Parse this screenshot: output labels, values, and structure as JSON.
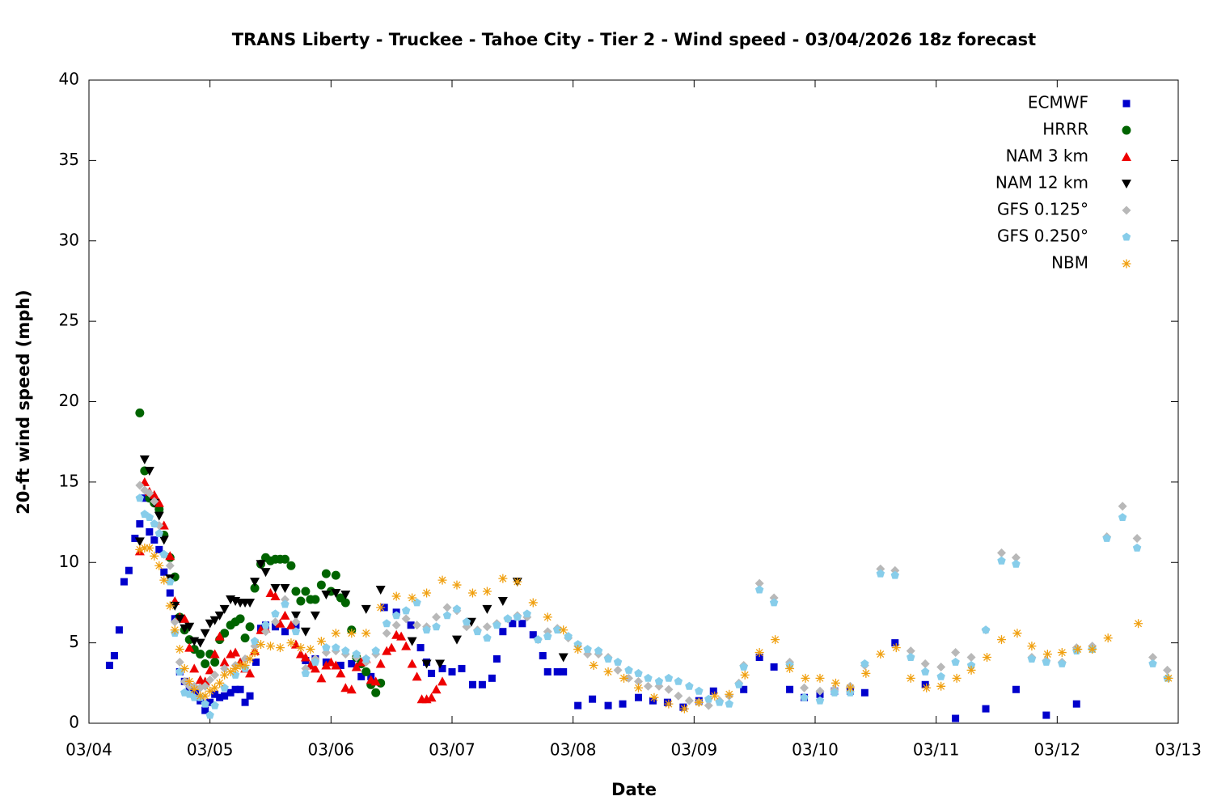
{
  "chart_data": {
    "type": "scatter",
    "title": "TRANS Liberty - Truckee - Tahoe City - Tier 2 - Wind speed - 03/04/2026 18z forecast",
    "x_label": "Date",
    "y_label": "20-ft wind speed (mph)",
    "xlim": [
      0,
      9
    ],
    "xticks": [
      {
        "value": 0,
        "label": "03/04"
      },
      {
        "value": 1,
        "label": "03/05"
      },
      {
        "value": 2,
        "label": "03/06"
      },
      {
        "value": 3,
        "label": "03/07"
      },
      {
        "value": 4,
        "label": "03/08"
      },
      {
        "value": 5,
        "label": "03/09"
      },
      {
        "value": 6,
        "label": "03/10"
      },
      {
        "value": 7,
        "label": "03/11"
      },
      {
        "value": 8,
        "label": "03/12"
      },
      {
        "value": 9,
        "label": "03/13"
      }
    ],
    "ylim": [
      0,
      40
    ],
    "yticks": [
      0,
      5,
      10,
      15,
      20,
      25,
      30,
      35,
      40
    ],
    "grid": false,
    "legend": "upper right",
    "series": [
      {
        "name": "ECMWF",
        "color": "#0000cc",
        "marker": "square",
        "x": [
          0.17,
          0.21,
          0.25,
          0.29,
          0.33,
          0.38,
          0.42,
          0.46,
          0.5,
          0.54,
          0.58,
          0.62,
          0.67,
          0.71,
          0.75,
          0.79,
          0.83,
          0.88,
          0.92,
          0.96,
          1.0,
          1.04,
          1.08,
          1.12,
          1.17,
          1.21,
          1.25,
          1.29,
          1.33,
          1.38,
          1.42,
          1.46,
          1.54,
          1.62,
          1.71,
          1.79,
          1.87,
          1.96,
          2.08,
          2.17,
          2.25,
          2.33,
          2.44,
          2.54,
          2.66,
          2.74,
          2.79,
          2.83,
          2.92,
          3.0,
          3.08,
          3.17,
          3.25,
          3.33,
          3.37,
          3.42,
          3.5,
          3.58,
          3.67,
          3.75,
          3.79,
          3.87,
          3.92,
          4.04,
          4.16,
          4.29,
          4.41,
          4.54,
          4.66,
          4.78,
          4.91,
          5.04,
          5.16,
          5.41,
          5.54,
          5.66,
          5.79,
          5.91,
          6.04,
          6.16,
          6.29,
          6.41,
          6.66,
          6.91,
          7.16,
          7.41,
          7.66,
          7.91,
          8.16
        ],
        "values": [
          3.6,
          4.2,
          5.8,
          8.8,
          9.5,
          11.5,
          12.4,
          14.0,
          11.9,
          11.4,
          10.8,
          9.4,
          8.1,
          6.5,
          3.2,
          2.6,
          2.1,
          1.9,
          1.4,
          0.8,
          1.3,
          1.8,
          1.6,
          1.7,
          1.9,
          2.1,
          2.1,
          1.3,
          1.7,
          3.8,
          5.9,
          6.1,
          6.0,
          5.7,
          6.1,
          3.9,
          4.0,
          3.8,
          3.6,
          3.7,
          2.9,
          2.9,
          7.2,
          6.9,
          6.1,
          4.7,
          3.8,
          3.1,
          3.4,
          3.2,
          3.4,
          2.4,
          2.4,
          2.8,
          4.0,
          5.7,
          6.2,
          6.2,
          5.5,
          4.2,
          3.2,
          3.2,
          3.2,
          1.1,
          1.5,
          1.1,
          1.2,
          1.6,
          1.4,
          1.3,
          1.0,
          1.4,
          2.0,
          2.1,
          4.1,
          3.5,
          2.1,
          1.6,
          1.8,
          2.0,
          2.0,
          1.9,
          5.0,
          2.4,
          0.3,
          0.9,
          2.1,
          0.5,
          1.2
        ]
      },
      {
        "name": "HRRR",
        "color": "#006400",
        "marker": "circle",
        "x": [
          0.42,
          0.46,
          0.5,
          0.54,
          0.58,
          0.62,
          0.67,
          0.71,
          0.75,
          0.79,
          0.83,
          0.87,
          0.92,
          0.96,
          1.0,
          1.04,
          1.08,
          1.12,
          1.17,
          1.21,
          1.25,
          1.29,
          1.33,
          1.37,
          1.42,
          1.46,
          1.5,
          1.54,
          1.58,
          1.62,
          1.67,
          1.71,
          1.75,
          1.79,
          1.83,
          1.87,
          1.92,
          1.96,
          2.0,
          2.04,
          2.08,
          2.12,
          2.17,
          2.21,
          2.25,
          2.29,
          2.33,
          2.37,
          2.41
        ],
        "values": [
          19.3,
          15.7,
          14.0,
          13.7,
          13.3,
          11.7,
          10.3,
          9.1,
          6.6,
          5.8,
          5.2,
          4.6,
          4.3,
          3.7,
          4.3,
          3.8,
          5.2,
          5.6,
          6.1,
          6.3,
          6.5,
          5.3,
          6.0,
          8.4,
          9.9,
          10.3,
          10.1,
          10.2,
          10.2,
          10.2,
          9.8,
          8.2,
          7.6,
          8.2,
          7.7,
          7.7,
          8.6,
          9.3,
          8.2,
          9.2,
          7.8,
          7.5,
          5.8,
          4.1,
          3.7,
          3.2,
          2.4,
          1.9,
          2.5
        ]
      },
      {
        "name": "NAM 3 km",
        "color": "#ee0000",
        "marker": "triangle-up",
        "x": [
          0.42,
          0.46,
          0.5,
          0.54,
          0.58,
          0.62,
          0.67,
          0.71,
          0.75,
          0.79,
          0.83,
          0.87,
          0.92,
          0.96,
          1.0,
          1.04,
          1.08,
          1.12,
          1.17,
          1.21,
          1.25,
          1.29,
          1.33,
          1.37,
          1.42,
          1.46,
          1.5,
          1.54,
          1.58,
          1.62,
          1.67,
          1.71,
          1.75,
          1.79,
          1.83,
          1.87,
          1.92,
          1.96,
          2.0,
          2.04,
          2.08,
          2.12,
          2.17,
          2.21,
          2.25,
          2.29,
          2.33,
          2.37,
          2.41,
          2.46,
          2.5,
          2.54,
          2.58,
          2.62,
          2.67,
          2.71,
          2.75,
          2.79,
          2.83,
          2.87,
          2.92
        ],
        "values": [
          10.7,
          15.0,
          14.4,
          14.2,
          13.7,
          12.3,
          10.4,
          7.6,
          6.6,
          6.5,
          4.7,
          3.4,
          2.7,
          2.6,
          3.3,
          4.3,
          5.4,
          3.8,
          4.3,
          4.4,
          3.8,
          3.4,
          3.1,
          4.5,
          5.8,
          5.9,
          8.1,
          7.9,
          6.2,
          6.7,
          6.1,
          4.9,
          4.3,
          4.1,
          3.6,
          3.4,
          2.8,
          3.6,
          3.8,
          3.6,
          3.1,
          2.2,
          2.1,
          3.5,
          3.8,
          4.0,
          2.7,
          2.6,
          3.7,
          4.5,
          4.7,
          5.5,
          5.4,
          4.8,
          3.7,
          2.9,
          1.5,
          1.5,
          1.6,
          2.1,
          2.6
        ]
      },
      {
        "name": "NAM 12 km",
        "color": "#000000",
        "marker": "triangle-down",
        "x": [
          0.42,
          0.46,
          0.5,
          0.54,
          0.58,
          0.62,
          0.67,
          0.71,
          0.75,
          0.79,
          0.83,
          0.87,
          0.92,
          0.96,
          1.0,
          1.04,
          1.08,
          1.12,
          1.17,
          1.21,
          1.25,
          1.29,
          1.33,
          1.37,
          1.42,
          1.46,
          1.54,
          1.62,
          1.71,
          1.79,
          1.87,
          1.96,
          2.04,
          2.12,
          2.29,
          2.41,
          2.67,
          2.79,
          2.9,
          3.04,
          3.16,
          3.29,
          3.42,
          3.54,
          3.92
        ],
        "values": [
          11.3,
          16.4,
          15.7,
          13.7,
          12.9,
          11.4,
          9.0,
          7.3,
          6.5,
          5.9,
          6.0,
          5.1,
          5.0,
          5.6,
          6.2,
          6.4,
          6.7,
          7.1,
          7.7,
          7.6,
          7.5,
          7.5,
          7.5,
          8.8,
          9.9,
          9.4,
          8.4,
          8.4,
          6.7,
          5.7,
          6.7,
          8.0,
          8.1,
          8.0,
          7.1,
          8.3,
          5.1,
          3.7,
          3.7,
          5.2,
          6.3,
          7.1,
          7.6,
          8.8,
          4.1
        ]
      },
      {
        "name": "GFS 0.125°",
        "color": "#b8b8b8",
        "marker": "diamond",
        "x": [
          0.42,
          0.46,
          0.5,
          0.54,
          0.58,
          0.62,
          0.67,
          0.71,
          0.75,
          0.79,
          0.83,
          0.87,
          0.92,
          0.96,
          1.0,
          1.04,
          1.12,
          1.21,
          1.29,
          1.37,
          1.46,
          1.54,
          1.62,
          1.71,
          1.79,
          1.87,
          1.96,
          2.04,
          2.12,
          2.21,
          2.29,
          2.37,
          2.46,
          2.54,
          2.62,
          2.71,
          2.79,
          2.87,
          2.96,
          3.04,
          3.12,
          3.21,
          3.29,
          3.37,
          3.46,
          3.54,
          3.62,
          3.71,
          3.79,
          3.87,
          3.96,
          4.04,
          4.12,
          4.21,
          4.29,
          4.37,
          4.46,
          4.54,
          4.62,
          4.71,
          4.79,
          4.87,
          4.96,
          5.04,
          5.12,
          5.21,
          5.29,
          5.37,
          5.41,
          5.54,
          5.66,
          5.79,
          5.91,
          6.04,
          6.16,
          6.29,
          6.41,
          6.54,
          6.66,
          6.79,
          6.91,
          7.04,
          7.16,
          7.29,
          7.41,
          7.54,
          7.66,
          7.79,
          7.91,
          8.04,
          8.16,
          8.29,
          8.41,
          8.54,
          8.66,
          8.79,
          8.91
        ],
        "values": [
          14.8,
          14.5,
          14.3,
          13.8,
          12.3,
          10.5,
          9.8,
          6.3,
          3.8,
          2.6,
          2.3,
          2.3,
          2.2,
          2.3,
          2.7,
          3.0,
          3.4,
          3.6,
          4.0,
          4.8,
          5.7,
          6.3,
          7.7,
          6.3,
          3.4,
          4.0,
          4.4,
          4.5,
          4.3,
          4.1,
          3.8,
          4.3,
          5.6,
          6.1,
          6.5,
          6.1,
          6.0,
          6.6,
          7.2,
          7.0,
          6.0,
          5.8,
          6.0,
          6.2,
          6.5,
          6.7,
          6.6,
          5.2,
          5.7,
          5.9,
          5.3,
          4.8,
          4.3,
          4.3,
          4.1,
          3.3,
          2.8,
          2.6,
          2.3,
          2.3,
          2.1,
          1.7,
          1.4,
          1.3,
          1.1,
          1.4,
          1.7,
          2.5,
          3.6,
          8.7,
          7.8,
          3.8,
          2.2,
          2.0,
          2.1,
          2.3,
          3.6,
          9.6,
          9.5,
          4.5,
          3.7,
          3.5,
          4.4,
          4.1,
          5.8,
          10.6,
          10.3,
          4.1,
          3.9,
          3.8,
          4.7,
          4.8,
          11.6,
          13.5,
          11.5,
          4.1,
          3.3
        ]
      },
      {
        "name": "GFS 0.250°",
        "color": "#87cdea",
        "marker": "pentagon",
        "x": [
          0.42,
          0.46,
          0.5,
          0.54,
          0.58,
          0.62,
          0.67,
          0.71,
          0.75,
          0.79,
          0.83,
          0.87,
          0.92,
          0.96,
          1.0,
          1.04,
          1.12,
          1.21,
          1.29,
          1.37,
          1.46,
          1.54,
          1.62,
          1.71,
          1.79,
          1.87,
          1.96,
          2.04,
          2.12,
          2.21,
          2.29,
          2.37,
          2.46,
          2.54,
          2.62,
          2.71,
          2.79,
          2.87,
          2.96,
          3.04,
          3.12,
          3.21,
          3.29,
          3.37,
          3.46,
          3.54,
          3.62,
          3.71,
          3.79,
          3.87,
          3.96,
          4.04,
          4.12,
          4.21,
          4.29,
          4.37,
          4.46,
          4.54,
          4.62,
          4.71,
          4.79,
          4.87,
          4.96,
          5.04,
          5.12,
          5.21,
          5.29,
          5.37,
          5.41,
          5.54,
          5.66,
          5.79,
          5.91,
          6.04,
          6.16,
          6.29,
          6.41,
          6.54,
          6.66,
          6.79,
          6.91,
          7.04,
          7.16,
          7.29,
          7.41,
          7.54,
          7.66,
          7.79,
          7.91,
          8.04,
          8.16,
          8.29,
          8.41,
          8.54,
          8.66,
          8.79,
          8.91
        ],
        "values": [
          14.0,
          13.0,
          12.8,
          12.4,
          11.8,
          10.5,
          8.8,
          5.6,
          3.2,
          1.9,
          1.8,
          1.6,
          1.6,
          1.2,
          0.5,
          1.1,
          2.2,
          3.0,
          3.4,
          5.1,
          6.1,
          6.8,
          7.4,
          5.7,
          3.1,
          3.8,
          4.7,
          4.7,
          4.5,
          4.3,
          4.0,
          4.5,
          6.2,
          6.7,
          7.0,
          7.5,
          5.8,
          6.0,
          6.7,
          7.1,
          6.3,
          5.7,
          5.3,
          6.1,
          6.5,
          6.6,
          6.8,
          5.2,
          5.4,
          5.8,
          5.4,
          4.9,
          4.6,
          4.5,
          4.0,
          3.8,
          3.3,
          3.1,
          2.8,
          2.6,
          2.8,
          2.6,
          2.3,
          2.0,
          1.5,
          1.3,
          1.2,
          2.4,
          3.5,
          8.3,
          7.5,
          3.6,
          1.6,
          1.4,
          1.9,
          1.9,
          3.7,
          9.3,
          9.2,
          4.1,
          3.2,
          2.9,
          3.8,
          3.6,
          5.8,
          10.1,
          9.9,
          4.0,
          3.8,
          3.7,
          4.5,
          4.6,
          11.5,
          12.8,
          10.9,
          3.7,
          2.8
        ]
      },
      {
        "name": "NBM",
        "color": "#f0a010",
        "marker": "asterisk",
        "x": [
          0.42,
          0.46,
          0.5,
          0.54,
          0.58,
          0.62,
          0.67,
          0.71,
          0.75,
          0.79,
          0.83,
          0.87,
          0.92,
          0.96,
          1.0,
          1.04,
          1.08,
          1.12,
          1.17,
          1.21,
          1.25,
          1.29,
          1.33,
          1.37,
          1.42,
          1.5,
          1.58,
          1.67,
          1.75,
          1.83,
          1.92,
          2.04,
          2.17,
          2.29,
          2.41,
          2.54,
          2.67,
          2.79,
          2.92,
          3.04,
          3.17,
          3.29,
          3.42,
          3.54,
          3.67,
          3.79,
          3.92,
          4.04,
          4.17,
          4.29,
          4.42,
          4.54,
          4.67,
          4.79,
          4.92,
          5.04,
          5.17,
          5.29,
          5.42,
          5.54,
          5.67,
          5.79,
          5.92,
          6.04,
          6.17,
          6.29,
          6.42,
          6.54,
          6.67,
          6.79,
          6.92,
          7.04,
          7.17,
          7.29,
          7.42,
          7.54,
          7.67,
          7.79,
          7.92,
          8.04,
          8.17,
          8.29,
          8.42,
          8.67,
          8.92
        ],
        "values": [
          10.8,
          10.9,
          10.9,
          10.4,
          9.8,
          8.9,
          7.3,
          5.8,
          4.6,
          3.4,
          2.6,
          2.1,
          1.7,
          1.7,
          2.0,
          2.2,
          2.5,
          3.0,
          3.2,
          3.4,
          3.6,
          3.6,
          4.0,
          4.4,
          4.9,
          4.8,
          4.7,
          5.0,
          4.7,
          4.6,
          5.1,
          5.6,
          5.6,
          5.6,
          7.2,
          7.9,
          7.8,
          8.1,
          8.9,
          8.6,
          8.1,
          8.2,
          9.0,
          8.8,
          7.5,
          6.6,
          5.8,
          4.6,
          3.6,
          3.2,
          2.8,
          2.2,
          1.6,
          1.2,
          0.9,
          1.3,
          1.7,
          1.8,
          3.0,
          4.4,
          5.2,
          3.4,
          2.8,
          2.8,
          2.5,
          2.2,
          3.1,
          4.3,
          4.7,
          2.8,
          2.2,
          2.3,
          2.8,
          3.3,
          4.1,
          5.2,
          5.6,
          4.8,
          4.3,
          4.4,
          4.6,
          4.6,
          5.3,
          6.2,
          2.8
        ]
      }
    ]
  }
}
